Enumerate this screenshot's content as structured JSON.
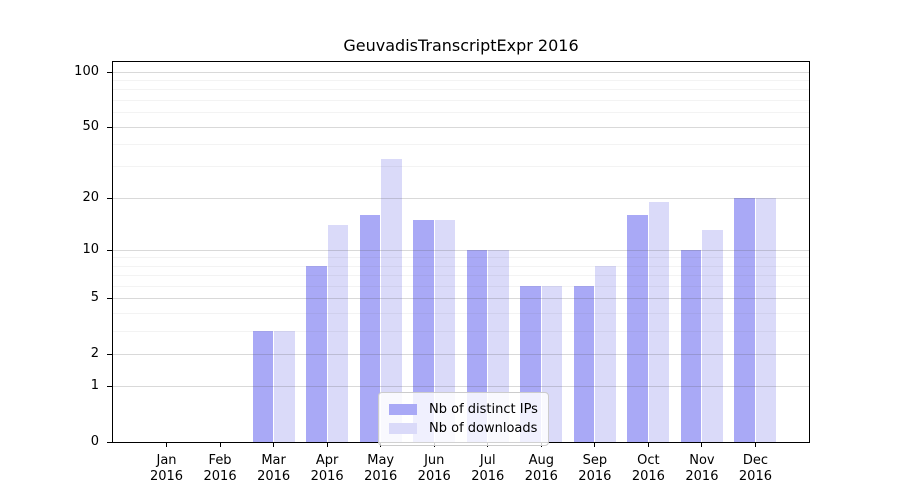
{
  "title": "GeuvadisTranscriptExpr 2016",
  "chart_data": {
    "type": "bar",
    "title": "GeuvadisTranscriptExpr 2016",
    "y_scale": "log1p",
    "grid": true,
    "categories": [
      "Jan 2016",
      "Feb 2016",
      "Mar 2016",
      "Apr 2016",
      "May 2016",
      "Jun 2016",
      "Jul 2016",
      "Aug 2016",
      "Sep 2016",
      "Oct 2016",
      "Nov 2016",
      "Dec 2016"
    ],
    "series": [
      {
        "name": "Nb of distinct IPs",
        "color": "#a9a9f6",
        "values": [
          0,
          0,
          3,
          8,
          16,
          15,
          10,
          6,
          6,
          16,
          10,
          20
        ]
      },
      {
        "name": "Nb of downloads",
        "color": "#dadaf9",
        "values": [
          0,
          0,
          3,
          14,
          33,
          15,
          10,
          6,
          8,
          19,
          13,
          20
        ]
      }
    ],
    "y_ticks": [
      0,
      1,
      2,
      5,
      10,
      20,
      50,
      100
    ],
    "y_minor_gridlines": [
      3,
      4,
      6,
      7,
      8,
      9,
      30,
      40,
      60,
      70,
      80,
      90
    ],
    "ylim": [
      0,
      113
    ],
    "legend_position": "lower center"
  },
  "colors": {
    "spine": "#000000",
    "grid_major": "#d4d4d4",
    "grid_minor": "#efefef",
    "legend_border": "#cccccc"
  }
}
